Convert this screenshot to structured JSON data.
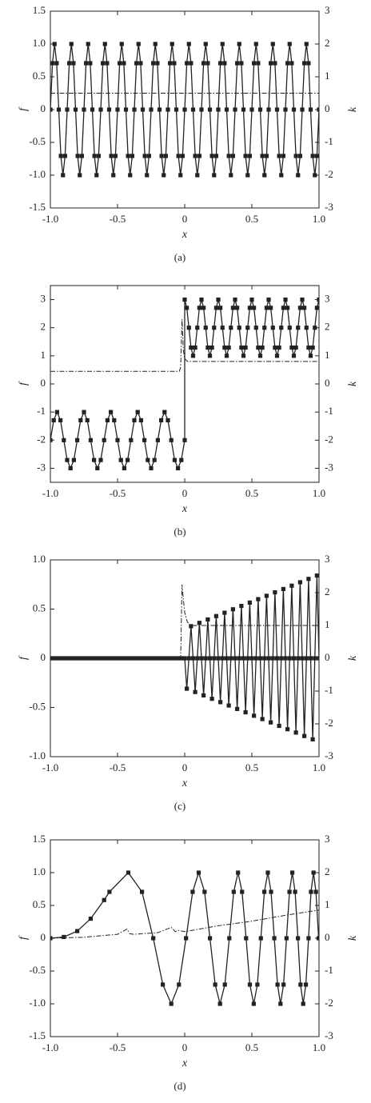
{
  "chart_data": [
    {
      "type": "line",
      "caption": "(a)",
      "xlabel": "x",
      "ylabel": "f",
      "y2label": "k",
      "xlim": [
        -1,
        1
      ],
      "xticks": [
        {
          "value": -1,
          "label": "-1.0"
        },
        -0.5,
        0,
        0.5,
        {
          "value": 1,
          "label": "1.0"
        }
      ],
      "ylim": [
        -1.5,
        1.5
      ],
      "yticks": [
        -1.5,
        {
          "value": -1,
          "label": "-1.0"
        },
        -0.5,
        0,
        0.5,
        {
          "value": 1,
          "label": "1.0"
        },
        1.5
      ],
      "y2lim": [
        -3,
        3
      ],
      "y2ticks": [
        -3,
        -2,
        -1,
        0,
        1,
        2,
        3
      ],
      "series": [
        {
          "color": "#222222",
          "style": "solid",
          "marker": "square",
          "x": [
            -1,
            -0.9844,
            -0.9688,
            -0.9531,
            -0.9375,
            -0.9219,
            -0.9063,
            -0.8906,
            -0.875,
            -0.8594,
            -0.8438,
            -0.8281,
            -0.8125,
            -0.7969,
            -0.7813,
            -0.7656,
            -0.75,
            -0.7344,
            -0.7188,
            -0.7031,
            -0.6875,
            -0.6719,
            -0.6563,
            -0.6406,
            -0.625,
            -0.6094,
            -0.5938,
            -0.5781,
            -0.5625,
            -0.5469,
            -0.5313,
            -0.5156,
            -0.5,
            -0.4844,
            -0.4688,
            -0.4531,
            -0.4375,
            -0.4219,
            -0.4063,
            -0.3906,
            -0.375,
            -0.3594,
            -0.3438,
            -0.3281,
            -0.3125,
            -0.2969,
            -0.2813,
            -0.2656,
            -0.25,
            -0.2344,
            -0.2188,
            -0.2031,
            -0.1875,
            -0.1719,
            -0.1563,
            -0.1406,
            -0.125,
            -0.1094,
            -0.0938,
            -0.0781,
            -0.0625,
            -0.0469,
            -0.0313,
            -0.0156,
            0,
            0.0156,
            0.0313,
            0.0469,
            0.0625,
            0.0781,
            0.0938,
            0.1094,
            0.125,
            0.1406,
            0.1563,
            0.1719,
            0.1875,
            0.2031,
            0.2188,
            0.2344,
            0.25,
            0.2656,
            0.2813,
            0.2969,
            0.3125,
            0.3281,
            0.3438,
            0.3594,
            0.375,
            0.3906,
            0.4063,
            0.4219,
            0.4375,
            0.4531,
            0.4688,
            0.4844,
            0.5,
            0.5156,
            0.5313,
            0.5469,
            0.5625,
            0.5781,
            0.5938,
            0.6094,
            0.625,
            0.6406,
            0.6563,
            0.6719,
            0.6875,
            0.7031,
            0.7188,
            0.7344,
            0.75,
            0.7656,
            0.7813,
            0.7969,
            0.8125,
            0.8281,
            0.8438,
            0.8594,
            0.875,
            0.8906,
            0.9063,
            0.9219,
            0.9375,
            0.9531,
            0.9688,
            0.9844,
            1
          ],
          "values": [
            0,
            0.707,
            1,
            0.707,
            0,
            -0.707,
            -1,
            -0.707,
            0,
            0.707,
            1,
            0.707,
            0,
            -0.707,
            -1,
            -0.707,
            0,
            0.707,
            1,
            0.707,
            0,
            -0.707,
            -1,
            -0.707,
            0,
            0.707,
            1,
            0.707,
            0,
            -0.707,
            -1,
            -0.707,
            0,
            0.707,
            1,
            0.707,
            0,
            -0.707,
            -1,
            -0.707,
            0,
            0.707,
            1,
            0.707,
            0,
            -0.707,
            -1,
            -0.707,
            0,
            0.707,
            1,
            0.707,
            0,
            -0.707,
            -1,
            -0.707,
            0,
            0.707,
            1,
            0.707,
            0,
            -0.707,
            -1,
            -0.707,
            0,
            0.707,
            1,
            0.707,
            0,
            -0.707,
            -1,
            -0.707,
            0,
            0.707,
            1,
            0.707,
            0,
            -0.707,
            -1,
            -0.707,
            0,
            0.707,
            1,
            0.707,
            0,
            -0.707,
            -1,
            -0.707,
            0,
            0.707,
            1,
            0.707,
            0,
            -0.707,
            -1,
            -0.707,
            0,
            0.707,
            1,
            0.707,
            0,
            -0.707,
            -1,
            -0.707,
            0,
            0.707,
            1,
            0.707,
            0,
            -0.707,
            -1,
            -0.707,
            0,
            0.707,
            1,
            0.707,
            0,
            -0.707,
            -1,
            -0.707,
            0,
            0.707,
            1,
            0.707,
            0,
            -0.707,
            -1,
            -0.707,
            0
          ]
        },
        {
          "color": "#222222",
          "style": "dashdot",
          "axis": "y2",
          "x": [
            -1,
            1
          ],
          "values": [
            0.5,
            0.5
          ]
        }
      ]
    },
    {
      "type": "line",
      "caption": "(b)",
      "xlabel": "x",
      "ylabel": "f",
      "y2label": "k",
      "xlim": [
        -1,
        1
      ],
      "xticks": [
        {
          "value": -1,
          "label": "-1.0"
        },
        -0.5,
        0,
        0.5,
        {
          "value": 1,
          "label": "1.0"
        }
      ],
      "ylim": [
        -3.5,
        3.5
      ],
      "yticks": [
        -3,
        -2,
        -1,
        0,
        1,
        2,
        3
      ],
      "y2lim": [
        -3.5,
        3.5
      ],
      "y2ticks": [
        -3,
        -2,
        -1,
        0,
        1,
        2,
        3
      ],
      "series": [
        {
          "color": "#222222",
          "style": "solid",
          "marker": "square",
          "x": [
            -1,
            -0.975,
            -0.95,
            -0.925,
            -0.9,
            -0.875,
            -0.85,
            -0.825,
            -0.8,
            -0.775,
            -0.75,
            -0.725,
            -0.7,
            -0.675,
            -0.65,
            -0.625,
            -0.6,
            -0.575,
            -0.55,
            -0.525,
            -0.5,
            -0.475,
            -0.45,
            -0.425,
            -0.4,
            -0.375,
            -0.35,
            -0.325,
            -0.3,
            -0.275,
            -0.25,
            -0.225,
            -0.2,
            -0.175,
            -0.15,
            -0.125,
            -0.1,
            -0.075,
            -0.05,
            -0.025,
            0,
            0,
            0.0156,
            0.0313,
            0.0469,
            0.0625,
            0.0781,
            0.0938,
            0.1094,
            0.125,
            0.1406,
            0.1563,
            0.1719,
            0.1875,
            0.2031,
            0.2188,
            0.2344,
            0.25,
            0.2656,
            0.2813,
            0.2969,
            0.3125,
            0.3281,
            0.3438,
            0.3594,
            0.375,
            0.3906,
            0.4063,
            0.4219,
            0.4375,
            0.4531,
            0.4688,
            0.4844,
            0.5,
            0.5156,
            0.5313,
            0.5469,
            0.5625,
            0.5781,
            0.5938,
            0.6094,
            0.625,
            0.6406,
            0.6563,
            0.6719,
            0.6875,
            0.7031,
            0.7188,
            0.7344,
            0.75,
            0.7656,
            0.7813,
            0.7969,
            0.8125,
            0.8281,
            0.8438,
            0.8594,
            0.875,
            0.8906,
            0.9063,
            0.9219,
            0.9375,
            0.9531,
            0.9688,
            0.9844,
            1
          ],
          "values": [
            -2,
            -1.293,
            -1,
            -1.293,
            -2,
            -2.707,
            -3,
            -2.707,
            -2,
            -1.293,
            -1,
            -1.293,
            -2,
            -2.707,
            -3,
            -2.707,
            -2,
            -1.293,
            -1,
            -1.293,
            -2,
            -2.707,
            -3,
            -2.707,
            -2,
            -1.293,
            -1,
            -1.293,
            -2,
            -2.707,
            -3,
            -2.707,
            -2,
            -1.293,
            -1,
            -1.293,
            -2,
            -2.707,
            -3,
            -2.707,
            -2,
            3,
            2.707,
            2,
            1.293,
            1,
            1.293,
            2,
            2.707,
            3,
            2.707,
            2,
            1.293,
            1,
            1.293,
            2,
            2.707,
            3,
            2.707,
            2,
            1.293,
            1,
            1.293,
            2,
            2.707,
            3,
            2.707,
            2,
            1.293,
            1,
            1.293,
            2,
            2.707,
            3,
            2.707,
            2,
            1.293,
            1,
            1.293,
            2,
            2.707,
            3,
            2.707,
            2,
            1.293,
            1,
            1.293,
            2,
            2.707,
            3,
            2.707,
            2,
            1.293,
            1,
            1.293,
            2,
            2.707,
            3,
            2.707,
            2,
            1.293,
            1,
            1.293,
            2,
            2.707,
            3
          ]
        },
        {
          "color": "#222222",
          "style": "dashdot",
          "axis": "y2",
          "x": [
            -1,
            -0.04,
            -0.03,
            -0.02,
            -0.01,
            0,
            0.02,
            1
          ],
          "values": [
            0.45,
            0.45,
            0.6,
            2.3,
            1.2,
            0.9,
            0.8,
            0.8
          ]
        }
      ]
    },
    {
      "type": "line",
      "caption": "(c)",
      "xlabel": "x",
      "ylabel": "f",
      "y2label": "k",
      "xlim": [
        -1,
        1
      ],
      "xticks": [
        {
          "value": -1,
          "label": "-1.0"
        },
        -0.5,
        0,
        0.5,
        {
          "value": 1,
          "label": "1.0"
        }
      ],
      "ylim": [
        -1,
        1
      ],
      "yticks": [
        {
          "value": -1,
          "label": "-1.0"
        },
        -0.5,
        0,
        0.5,
        {
          "value": 1,
          "label": "1.0"
        }
      ],
      "y2lim": [
        -3,
        3
      ],
      "y2ticks": [
        -3,
        -2,
        -1,
        0,
        1,
        2,
        3
      ],
      "series": [
        {
          "color": "#222222",
          "style": "solid",
          "marker": "square",
          "x": [
            -1,
            -0.975,
            -0.95,
            -0.925,
            -0.9,
            -0.875,
            -0.85,
            -0.825,
            -0.8,
            -0.775,
            -0.75,
            -0.725,
            -0.7,
            -0.675,
            -0.65,
            -0.625,
            -0.6,
            -0.575,
            -0.55,
            -0.525,
            -0.5,
            -0.475,
            -0.45,
            -0.425,
            -0.4,
            -0.375,
            -0.35,
            -0.325,
            -0.3,
            -0.275,
            -0.25,
            -0.225,
            -0.2,
            -0.175,
            -0.15,
            -0.125,
            -0.1,
            -0.075,
            -0.05,
            -0.025,
            0,
            0.0156,
            0.0313,
            0.0469,
            0.0625,
            0.0781,
            0.0938,
            0.1094,
            0.125,
            0.1406,
            0.1563,
            0.1719,
            0.1875,
            0.2031,
            0.2188,
            0.2344,
            0.25,
            0.2656,
            0.2813,
            0.2969,
            0.3125,
            0.3281,
            0.3438,
            0.3594,
            0.375,
            0.3906,
            0.4063,
            0.4219,
            0.4375,
            0.4531,
            0.4688,
            0.4844,
            0.5,
            0.5156,
            0.5313,
            0.5469,
            0.5625,
            0.5781,
            0.5938,
            0.6094,
            0.625,
            0.6406,
            0.6563,
            0.6719,
            0.6875,
            0.7031,
            0.7188,
            0.7344,
            0.75,
            0.7656,
            0.7813,
            0.7969,
            0.8125,
            0.8281,
            0.8438,
            0.8594,
            0.875,
            0.8906,
            0.9063,
            0.9219,
            0.9375,
            0.9531,
            0.9688,
            0.9844,
            1
          ],
          "values": [
            0,
            0,
            0,
            0,
            0,
            0,
            0,
            0,
            0,
            0,
            0,
            0,
            0,
            0,
            0,
            0,
            0,
            0,
            0,
            0,
            0,
            0,
            0,
            0,
            0,
            0,
            0,
            0,
            0,
            0,
            0,
            0,
            0,
            0,
            0,
            0,
            0,
            0,
            0,
            0,
            0,
            -0.309,
            0,
            0.326,
            0,
            -0.343,
            0,
            0.36,
            0,
            -0.377,
            0,
            0.395,
            0,
            -0.412,
            0,
            0.429,
            0,
            -0.446,
            0,
            0.463,
            0,
            -0.48,
            0,
            0.498,
            0,
            -0.515,
            0,
            0.532,
            0,
            -0.549,
            0,
            0.566,
            0,
            -0.584,
            0,
            0.601,
            0,
            -0.618,
            0,
            0.635,
            0,
            -0.652,
            0,
            0.67,
            0,
            -0.687,
            0,
            0.704,
            0,
            -0.721,
            0,
            0.738,
            0,
            -0.755,
            0,
            0.773,
            0,
            -0.79,
            0,
            0.807,
            0,
            -0.824,
            0,
            0.841,
            0
          ]
        },
        {
          "color": "#222222",
          "style": "dashdot",
          "axis": "y2",
          "x": [
            -1,
            -0.03,
            -0.02,
            -0.01,
            0,
            0.02,
            0.05,
            1
          ],
          "values": [
            0,
            0,
            2.25,
            1.8,
            1.4,
            1.1,
            1,
            1
          ]
        }
      ]
    },
    {
      "type": "line",
      "caption": "(d)",
      "xlabel": "x",
      "ylabel": "f",
      "y2label": "k",
      "xlim": [
        -1,
        1
      ],
      "xticks": [
        {
          "value": -1,
          "label": "-1.0"
        },
        -0.5,
        0,
        0.5,
        {
          "value": 1,
          "label": "1.0"
        }
      ],
      "ylim": [
        -1.5,
        1.5
      ],
      "yticks": [
        -1.5,
        {
          "value": -1,
          "label": "-1.0"
        },
        -0.5,
        0,
        0.5,
        {
          "value": 1,
          "label": "1.0"
        },
        1.5
      ],
      "y2lim": [
        -3,
        3
      ],
      "y2ticks": [
        -3,
        -2,
        -1,
        0,
        1,
        2,
        3
      ],
      "series": [
        {
          "color": "#222222",
          "style": "solid",
          "marker": "square",
          "x": [
            -1,
            -0.9,
            -0.8,
            -0.7,
            -0.6,
            -0.56,
            -0.42,
            -0.318,
            -0.234,
            -0.163,
            -0.1,
            -0.043,
            0.01,
            0.059,
            0.104,
            0.148,
            0.188,
            0.227,
            0.263,
            0.299,
            0.332,
            0.365,
            0.397,
            0.427,
            0.457,
            0.485,
            0.514,
            0.541,
            0.567,
            0.593,
            0.619,
            0.643,
            0.667,
            0.691,
            0.713,
            0.736,
            0.758,
            0.78,
            0.801,
            0.822,
            0.843,
            0.862,
            0.882,
            0.902,
            0.922,
            0.94,
            0.959,
            0.977,
            0.997
          ],
          "values": [
            0,
            0.019,
            0.109,
            0.298,
            0.582,
            0.707,
            1,
            0.707,
            0,
            -0.707,
            -1,
            -0.707,
            0,
            0.707,
            1,
            0.707,
            0,
            -0.707,
            -1,
            -0.707,
            0,
            0.707,
            1,
            0.707,
            0,
            -0.707,
            -1,
            -0.707,
            0,
            0.707,
            1,
            0.707,
            0,
            -0.707,
            -1,
            -0.707,
            0,
            0.707,
            1,
            0.707,
            0,
            -0.707,
            -1,
            -0.707,
            0,
            0.707,
            1,
            0.707,
            0
          ]
        },
        {
          "color": "#222222",
          "style": "dashdot",
          "axis": "y2",
          "x": [
            -1,
            -0.75,
            -0.5,
            -0.43,
            -0.41,
            -0.38,
            -0.2,
            -0.1,
            -0.07,
            -0.05,
            0,
            0.25,
            0.5,
            0.75,
            1
          ],
          "values": [
            0,
            0.03,
            0.12,
            0.28,
            0.14,
            0.12,
            0.17,
            0.33,
            0.2,
            0.24,
            0.2,
            0.38,
            0.52,
            0.7,
            0.86
          ]
        }
      ]
    }
  ]
}
